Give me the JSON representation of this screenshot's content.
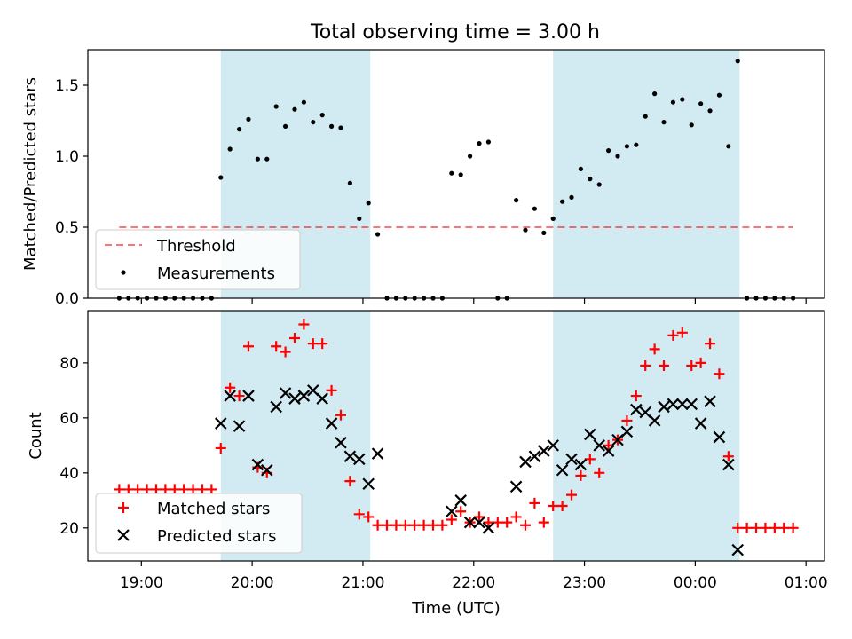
{
  "title": "Total observing time = 3.00 h",
  "colors": {
    "band": "#add8e6",
    "threshold": "#ff0000",
    "measurement": "#000000",
    "matched": "#ff0000",
    "predicted": "#000000"
  },
  "chart_data": [
    {
      "type": "scatter",
      "ylabel": "Matched/Predicted stars",
      "xlim": [
        "18:31",
        "01:10"
      ],
      "ylim": [
        0,
        1.75
      ],
      "yticks": [
        "0.0",
        "0.5",
        "1.0",
        "1.5"
      ],
      "shaded_intervals": [
        [
          "19:43",
          "21:04"
        ],
        [
          "22:43",
          "00:24"
        ]
      ],
      "legend": {
        "placement": "lower-left",
        "entries": [
          "Threshold",
          "Measurements"
        ]
      },
      "threshold": {
        "name": "Threshold",
        "x": [
          "18:48",
          "00:53"
        ],
        "y": [
          0.5,
          0.5
        ]
      },
      "series": [
        {
          "name": "Measurements",
          "x": [
            "18:48",
            "18:53",
            "18:58",
            "19:03",
            "19:08",
            "19:13",
            "19:18",
            "19:23",
            "19:28",
            "19:33",
            "19:38",
            "19:43",
            "19:48",
            "19:53",
            "19:58",
            "20:03",
            "20:08",
            "20:13",
            "20:18",
            "20:23",
            "20:28",
            "20:33",
            "20:38",
            "20:43",
            "20:48",
            "20:53",
            "20:58",
            "21:03",
            "21:08",
            "21:13",
            "21:18",
            "21:23",
            "21:28",
            "21:33",
            "21:38",
            "21:43",
            "21:48",
            "21:53",
            "21:58",
            "22:03",
            "22:08",
            "22:13",
            "22:18",
            "22:23",
            "22:28",
            "22:33",
            "22:38",
            "22:43",
            "22:48",
            "22:53",
            "22:58",
            "23:03",
            "23:08",
            "23:13",
            "23:18",
            "23:23",
            "23:28",
            "23:33",
            "23:38",
            "23:43",
            "23:48",
            "23:53",
            "23:58",
            "00:03",
            "00:08",
            "00:13",
            "00:18",
            "00:23",
            "00:28",
            "00:33",
            "00:38",
            "00:43",
            "00:48",
            "00:53"
          ],
          "y": [
            0,
            0,
            0,
            0,
            0,
            0,
            0,
            0,
            0,
            0,
            0,
            0.85,
            1.05,
            1.19,
            1.26,
            0.98,
            0.98,
            1.35,
            1.21,
            1.33,
            1.38,
            1.24,
            1.29,
            1.21,
            1.2,
            0.81,
            0.56,
            0.67,
            0.45,
            0,
            0,
            0,
            0,
            0,
            0,
            0,
            0.88,
            0.87,
            1.0,
            1.09,
            1.1,
            0,
            0,
            0.69,
            0.48,
            0.63,
            0.46,
            0.56,
            0.68,
            0.71,
            0.91,
            0.84,
            0.8,
            1.04,
            1.0,
            1.07,
            1.08,
            1.28,
            1.44,
            1.24,
            1.38,
            1.4,
            1.22,
            1.37,
            1.32,
            1.43,
            1.07,
            1.67,
            0,
            0,
            0,
            0,
            0,
            0
          ]
        }
      ]
    },
    {
      "type": "scatter",
      "ylabel": "Count",
      "xlabel": "Time (UTC)",
      "xlim": [
        "18:31",
        "01:10"
      ],
      "ylim": [
        8,
        99
      ],
      "yticks": [
        "20",
        "40",
        "60",
        "80"
      ],
      "xticks": [
        "19:00",
        "20:00",
        "21:00",
        "22:00",
        "23:00",
        "00:00",
        "01:00"
      ],
      "shaded_intervals": [
        [
          "19:43",
          "21:04"
        ],
        [
          "22:43",
          "00:24"
        ]
      ],
      "legend": {
        "placement": "lower-left",
        "entries": [
          "Matched stars",
          "Predicted stars"
        ]
      },
      "series": [
        {
          "name": "Matched stars",
          "marker": "+",
          "x": [
            "18:48",
            "18:53",
            "18:58",
            "19:03",
            "19:08",
            "19:13",
            "19:18",
            "19:23",
            "19:28",
            "19:33",
            "19:38",
            "19:43",
            "19:48",
            "19:53",
            "19:58",
            "20:03",
            "20:08",
            "20:13",
            "20:18",
            "20:23",
            "20:28",
            "20:33",
            "20:38",
            "20:43",
            "20:48",
            "20:53",
            "20:58",
            "21:03",
            "21:08",
            "21:13",
            "21:18",
            "21:23",
            "21:28",
            "21:33",
            "21:38",
            "21:43",
            "21:48",
            "21:53",
            "21:58",
            "22:03",
            "22:08",
            "22:13",
            "22:18",
            "22:23",
            "22:28",
            "22:33",
            "22:38",
            "22:43",
            "22:48",
            "22:53",
            "22:58",
            "23:03",
            "23:08",
            "23:13",
            "23:18",
            "23:23",
            "23:28",
            "23:33",
            "23:38",
            "23:43",
            "23:48",
            "23:53",
            "23:58",
            "00:03",
            "00:08",
            "00:13",
            "00:18",
            "00:23",
            "00:28",
            "00:33",
            "00:38",
            "00:43",
            "00:48",
            "00:53"
          ],
          "y": [
            34,
            34,
            34,
            34,
            34,
            34,
            34,
            34,
            34,
            34,
            34,
            49,
            71,
            68,
            86,
            42,
            40,
            86,
            84,
            89,
            94,
            87,
            87,
            70,
            61,
            37,
            25,
            24,
            21,
            21,
            21,
            21,
            21,
            21,
            21,
            21,
            23,
            26,
            22,
            24,
            22,
            22,
            22,
            24,
            21,
            29,
            22,
            28,
            28,
            32,
            39,
            45,
            40,
            50,
            52,
            59,
            68,
            79,
            85,
            79,
            90,
            91,
            79,
            80,
            87,
            76,
            46,
            20,
            20,
            20,
            20,
            20,
            20,
            20
          ]
        },
        {
          "name": "Predicted stars",
          "marker": "x",
          "x": [
            "19:43",
            "19:48",
            "19:53",
            "19:58",
            "20:03",
            "20:08",
            "20:13",
            "20:18",
            "20:23",
            "20:28",
            "20:33",
            "20:38",
            "20:43",
            "20:48",
            "20:53",
            "20:58",
            "21:03",
            "21:08",
            "21:48",
            "21:53",
            "21:58",
            "22:03",
            "22:08",
            "22:23",
            "22:28",
            "22:33",
            "22:38",
            "22:43",
            "22:48",
            "22:53",
            "22:58",
            "23:03",
            "23:08",
            "23:13",
            "23:18",
            "23:23",
            "23:28",
            "23:33",
            "23:38",
            "23:43",
            "23:48",
            "23:53",
            "23:58",
            "00:03",
            "00:08",
            "00:13",
            "00:18",
            "00:23"
          ],
          "y": [
            58,
            68,
            57,
            68,
            43,
            41,
            64,
            69,
            67,
            68,
            70,
            67,
            58,
            51,
            46,
            45,
            36,
            47,
            26,
            30,
            22,
            22,
            20,
            35,
            44,
            46,
            48,
            50,
            41,
            45,
            43,
            54,
            50,
            48,
            52,
            55,
            63,
            62,
            59,
            64,
            65,
            65,
            65,
            58,
            66,
            53,
            43,
            12
          ]
        }
      ]
    }
  ]
}
